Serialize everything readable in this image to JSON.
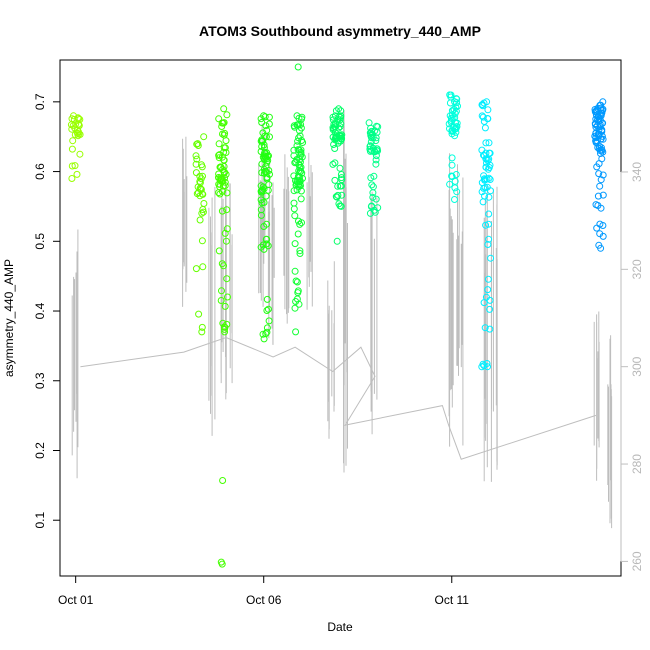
{
  "chart_data": {
    "type": "scatter",
    "title": "ATOM3 Southbound asymmetry_440_AMP",
    "xlabel": "Date",
    "ylabel": "asymmetry_440_AMP",
    "x_ticks": [
      {
        "date": "2014-10-01",
        "label": "Oct 01"
      },
      {
        "date": "2014-10-06",
        "label": "Oct 06"
      },
      {
        "date": "2014-10-11",
        "label": "Oct 11"
      }
    ],
    "xlim": [
      "2014-09-30T14:00",
      "2014-10-15T12:00"
    ],
    "ylim": [
      0.02,
      0.76
    ],
    "y_ticks": [
      0.1,
      0.2,
      0.3,
      0.4,
      0.5,
      0.6,
      0.7
    ],
    "y2lim": [
      257,
      363
    ],
    "y2_ticks": [
      260,
      280,
      300,
      320,
      340
    ],
    "y2_color": "#bebebe",
    "grid": false,
    "marker": "open-circle",
    "color_scale": [
      "#99ff00",
      "#33ff00",
      "#00ff44",
      "#00ffaa",
      "#00ffee",
      "#00ccff",
      "#0099ff"
    ],
    "clusters": [
      {
        "x": "2014-10-01T00:00",
        "y_min": 0.59,
        "y_max": 0.68,
        "n": 28,
        "color": "#99ff00",
        "outliers": []
      },
      {
        "x": "2014-10-04T07:00",
        "y_min": 0.37,
        "y_max": 0.65,
        "n": 35,
        "color": "#66ff00",
        "outliers": []
      },
      {
        "x": "2014-10-04T22:00",
        "y_min": 0.37,
        "y_max": 0.69,
        "n": 70,
        "color": "#44ff00",
        "outliers": [
          0.157,
          0.04,
          0.037
        ]
      },
      {
        "x": "2014-10-06T01:00",
        "y_min": 0.36,
        "y_max": 0.68,
        "n": 80,
        "color": "#22ff11",
        "outliers": []
      },
      {
        "x": "2014-10-06T22:00",
        "y_min": 0.37,
        "y_max": 0.68,
        "n": 80,
        "color": "#11ff33",
        "outliers": [
          0.75
        ]
      },
      {
        "x": "2014-10-07T23:00",
        "y_min": 0.55,
        "y_max": 0.69,
        "n": 60,
        "color": "#00ff66",
        "outliers": [
          0.5
        ]
      },
      {
        "x": "2014-10-08T22:00",
        "y_min": 0.54,
        "y_max": 0.67,
        "n": 45,
        "color": "#00ff88",
        "outliers": []
      },
      {
        "x": "2014-10-11T01:00",
        "y_min": 0.56,
        "y_max": 0.71,
        "n": 50,
        "color": "#00ffdd",
        "outliers": []
      },
      {
        "x": "2014-10-11T22:00",
        "y_min": 0.32,
        "y_max": 0.7,
        "n": 65,
        "color": "#00eeff",
        "outliers": []
      },
      {
        "x": "2014-10-14T22:00",
        "y_min": 0.49,
        "y_max": 0.7,
        "n": 80,
        "color": "#0099ff",
        "outliers": []
      }
    ],
    "secondary_series": {
      "color": "#bebebe",
      "axis": "right",
      "connector_points": [
        [
          "2014-10-01T03:00",
          300
        ],
        [
          "2014-10-03T21:00",
          303
        ],
        [
          "2014-10-05T00:00",
          306
        ],
        [
          "2014-10-06T06:00",
          302
        ],
        [
          "2014-10-06T20:00",
          304
        ],
        [
          "2014-10-07T20:00",
          299
        ],
        [
          "2014-10-08T14:00",
          304
        ],
        [
          "2014-10-08T23:00",
          298
        ],
        [
          "2014-10-08T04:00",
          288
        ],
        [
          "2014-10-10T18:00",
          292
        ],
        [
          "2014-10-10T22:00",
          288
        ],
        [
          "2014-10-11T06:00",
          281
        ],
        [
          "2014-10-14T20:00",
          290
        ]
      ],
      "spikes": [
        {
          "x": "2014-10-01T00:00",
          "low": 276,
          "high": 333
        },
        {
          "x": "2014-10-03T21:00",
          "low": 308,
          "high": 349
        },
        {
          "x": "2014-10-04T15:00",
          "low": 282,
          "high": 338
        },
        {
          "x": "2014-10-04T22:00",
          "low": 290,
          "high": 344
        },
        {
          "x": "2014-10-05T02:00",
          "low": 292,
          "high": 340
        },
        {
          "x": "2014-10-05T23:00",
          "low": 312,
          "high": 350
        },
        {
          "x": "2014-10-06T05:00",
          "low": 304,
          "high": 345
        },
        {
          "x": "2014-10-06T14:00",
          "low": 306,
          "high": 347
        },
        {
          "x": "2014-10-07T05:00",
          "low": 310,
          "high": 346
        },
        {
          "x": "2014-10-07T19:00",
          "low": 281,
          "high": 322
        },
        {
          "x": "2014-10-08T05:00",
          "low": 278,
          "high": 355
        },
        {
          "x": "2014-10-08T22:00",
          "low": 286,
          "high": 336
        },
        {
          "x": "2014-10-10T23:00",
          "low": 278,
          "high": 346
        },
        {
          "x": "2014-10-11T05:00",
          "low": 282,
          "high": 347
        },
        {
          "x": "2014-10-11T21:00",
          "low": 272,
          "high": 340
        },
        {
          "x": "2014-10-12T03:00",
          "low": 276,
          "high": 337
        },
        {
          "x": "2014-10-14T20:00",
          "low": 276,
          "high": 312
        },
        {
          "x": "2014-10-15T04:00",
          "low": 266,
          "high": 308
        }
      ]
    }
  }
}
